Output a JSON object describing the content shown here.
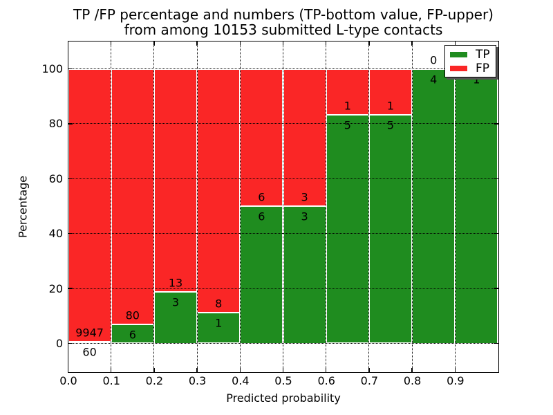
{
  "chart_data": {
    "type": "bar",
    "variant": "stacked-percentage-histogram",
    "title_lines": [
      "TP /FP percentage and numbers (TP-bottom value, FP-upper)",
      "from among 10153 submitted L-type contacts"
    ],
    "title": "TP /FP percentage and numbers (TP-bottom value, FP-upper)\nfrom among 10153 submitted L-type contacts",
    "xlabel": "Predicted probability",
    "ylabel": "Percentage",
    "total_contacts": 10153,
    "bin_width": 0.1,
    "bin_starts": [
      0.0,
      0.1,
      0.2,
      0.3,
      0.4,
      0.5,
      0.6,
      0.7,
      0.8,
      0.9
    ],
    "x_tick_labels": [
      "0.0",
      "0.1",
      "0.2",
      "0.3",
      "0.4",
      "0.5",
      "0.6",
      "0.7",
      "0.8",
      "0.9"
    ],
    "y_ticks": [
      0,
      20,
      40,
      60,
      80,
      100
    ],
    "y_tick_labels": [
      "0",
      "20",
      "40",
      "60",
      "80",
      "100"
    ],
    "xlim": [
      0.0,
      1.0
    ],
    "ylim": [
      -10.5,
      110.4
    ],
    "grid": "dotted-both-axes",
    "bar_edge_color": "#ffffff",
    "series": [
      {
        "name": "TP",
        "position": "bottom",
        "color": "#1f8c1f",
        "counts": [
          60,
          6,
          3,
          1,
          6,
          3,
          5,
          5,
          4,
          1
        ]
      },
      {
        "name": "FP",
        "position": "top",
        "color": "#fa2626",
        "counts": [
          9947,
          80,
          13,
          8,
          6,
          3,
          1,
          1,
          0,
          0
        ]
      }
    ],
    "tp_percent_of_bin": [
      0.6,
      6.98,
      18.75,
      11.11,
      50.0,
      50.0,
      83.33,
      83.33,
      100.0,
      100.0
    ],
    "legend": {
      "position": "upper-right",
      "entries": [
        {
          "label": "TP",
          "color": "#1f8c1f"
        },
        {
          "label": "FP",
          "color": "#fa2626"
        }
      ]
    }
  }
}
